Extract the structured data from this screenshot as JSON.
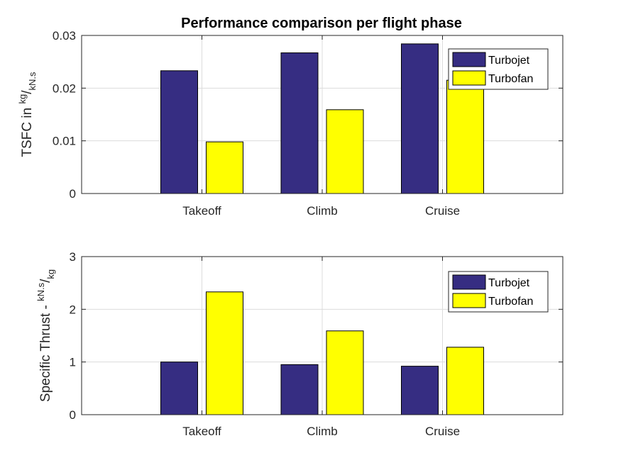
{
  "figure": {
    "title": "Performance comparison per flight phase"
  },
  "chart_data": [
    {
      "type": "bar",
      "title": "Performance comparison per flight phase",
      "categories": [
        "Takeoff",
        "Climb",
        "Cruise"
      ],
      "series": [
        {
          "name": "Turbojet",
          "values": [
            0.0233,
            0.0267,
            0.0284
          ],
          "color": "#362d82"
        },
        {
          "name": "Turbofan",
          "values": [
            0.0098,
            0.0159,
            0.0215
          ],
          "color": "#ffff00"
        }
      ],
      "ylabel": {
        "prefix": "TSFC in ",
        "numerator": "kg",
        "slash": "/",
        "denominator": "kN.s"
      },
      "ylim": [
        0,
        0.03
      ],
      "yticks": [
        "0",
        "0.01",
        "0.02",
        "0.03"
      ],
      "grid": true,
      "legend": "top-right"
    },
    {
      "type": "bar",
      "categories": [
        "Takeoff",
        "Climb",
        "Cruise"
      ],
      "series": [
        {
          "name": "Turbojet",
          "values": [
            1.0,
            0.95,
            0.92
          ],
          "color": "#362d82"
        },
        {
          "name": "Turbofan",
          "values": [
            2.33,
            1.59,
            1.28
          ],
          "color": "#ffff00"
        }
      ],
      "ylabel": {
        "prefix": "Specific Thrust - ",
        "numerator": "kN.s",
        "slash": "/",
        "denominator": "kg"
      },
      "ylim": [
        0,
        3
      ],
      "yticks": [
        "0",
        "1",
        "2",
        "3"
      ],
      "grid": true,
      "legend": "top-right"
    }
  ]
}
